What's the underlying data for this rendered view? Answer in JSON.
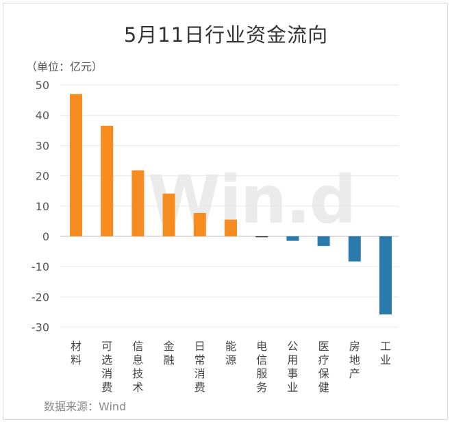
{
  "title": "5月11日行业资金流向",
  "unit_label": "（单位：亿元）",
  "source": "数据来源：Wind",
  "watermark": "Win.d",
  "colors": {
    "positive": "#f68b1f",
    "negative": "#2a7bab",
    "grid": "#e8e8e8",
    "zero_line": "#bbbbbb"
  },
  "chart_data": {
    "type": "bar",
    "title": "5月11日行业资金流向",
    "xlabel": "",
    "ylabel": "（单位：亿元）",
    "ylim": [
      -30,
      50
    ],
    "yticks": [
      50,
      40,
      30,
      20,
      10,
      0,
      -10,
      -20,
      -30
    ],
    "grid": true,
    "categories": [
      "材料",
      "可选消费",
      "信息技术",
      "金融",
      "日常消费",
      "能源",
      "电信服务",
      "公用事业",
      "医疗保健",
      "房地产",
      "工业"
    ],
    "values": [
      47.0,
      36.5,
      21.8,
      14.1,
      7.7,
      5.5,
      -0.3,
      -1.5,
      -3.2,
      -8.3,
      -25.8
    ]
  }
}
